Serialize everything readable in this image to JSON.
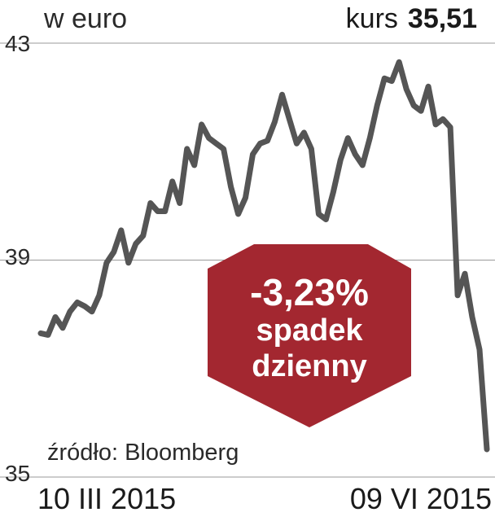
{
  "header": {
    "unit": "w euro",
    "kurs_label": "kurs",
    "kurs_value": "35,51"
  },
  "source": "źródło: Bloomberg",
  "badge": {
    "percent": "-3,23%",
    "line1": "spadek",
    "line2": "dzienny",
    "color": "#a32730"
  },
  "chart_data": {
    "type": "line",
    "x_labels": [
      "10 III 2015",
      "09 VI 2015"
    ],
    "yticks": [
      "43",
      "39",
      "35"
    ],
    "ylim": [
      35,
      43
    ],
    "line_color": "#555555",
    "grid": true,
    "series": [
      {
        "values": [
          37.65,
          37.62,
          37.95,
          37.75,
          38.05,
          38.22,
          38.15,
          38.05,
          38.35,
          38.95,
          39.15,
          39.55,
          38.95,
          39.3,
          39.45,
          40.05,
          39.9,
          39.9,
          40.45,
          40.05,
          41.05,
          40.75,
          41.5,
          41.25,
          41.15,
          41.05,
          40.35,
          39.85,
          40.15,
          40.95,
          41.15,
          41.2,
          41.55,
          42.05,
          41.6,
          41.15,
          41.35,
          41.05,
          39.85,
          39.75,
          40.25,
          40.85,
          41.25,
          40.95,
          40.75,
          41.25,
          41.85,
          42.35,
          42.3,
          42.65,
          42.15,
          41.85,
          41.75,
          42.2,
          41.5,
          41.6,
          41.45,
          38.35,
          38.75,
          37.95,
          37.35,
          35.51
        ]
      }
    ]
  }
}
